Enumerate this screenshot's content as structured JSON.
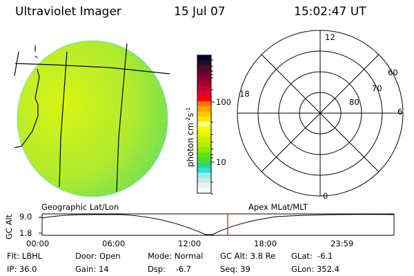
{
  "header": {
    "instrument": "Ultraviolet Imager",
    "date": "15 Jul 07",
    "time": "15:02:47 UT"
  },
  "colorbar": {
    "label": "photon cm",
    "label_exp1": "-2",
    "label_mid": "s",
    "label_exp2": "-1",
    "ticks": [
      "100",
      "10"
    ],
    "colors": [
      "#000033",
      "#2a0a2a",
      "#4a0a30",
      "#6a0030",
      "#880030",
      "#a80030",
      "#c80030",
      "#e00030",
      "#ff0000",
      "#ff7800",
      "#ffa500",
      "#ffc800",
      "#ffe600",
      "#ffff80",
      "#f4ff00",
      "#e4f800",
      "#cef000",
      "#b4ee00",
      "#90ec00",
      "#60e800",
      "#40e040",
      "#30d870",
      "#30e0d8",
      "#90f0f4",
      "#d0e4e4",
      "#e8f4ee",
      "#ffffff"
    ]
  },
  "polar": {
    "mlt_labels": [
      "12",
      "18",
      "6",
      "0"
    ],
    "lat_labels": [
      "60",
      "70",
      "80"
    ]
  },
  "timeline": {
    "left_label": "Geographic Lat/Lon",
    "right_label": "Apex MLat/MLT",
    "y_label": "GC Alt",
    "y_ticks": [
      "9.0",
      "1.8"
    ],
    "x_ticks": [
      "00:00",
      "06:00",
      "12:00",
      "18:00",
      "23:59"
    ],
    "current_time_marker_color": "#ff0000"
  },
  "info": {
    "row1": [
      "Flt: LBHL",
      "Door: Open",
      "Mode: Normal",
      "GC Alt: 3.8 Re",
      "GLat:  -6.1"
    ],
    "row2": [
      "IP: 36.0",
      "Gain: 14",
      "Dsp:    -6.7",
      "Seq: 39",
      "GLon: 352.4"
    ]
  }
}
